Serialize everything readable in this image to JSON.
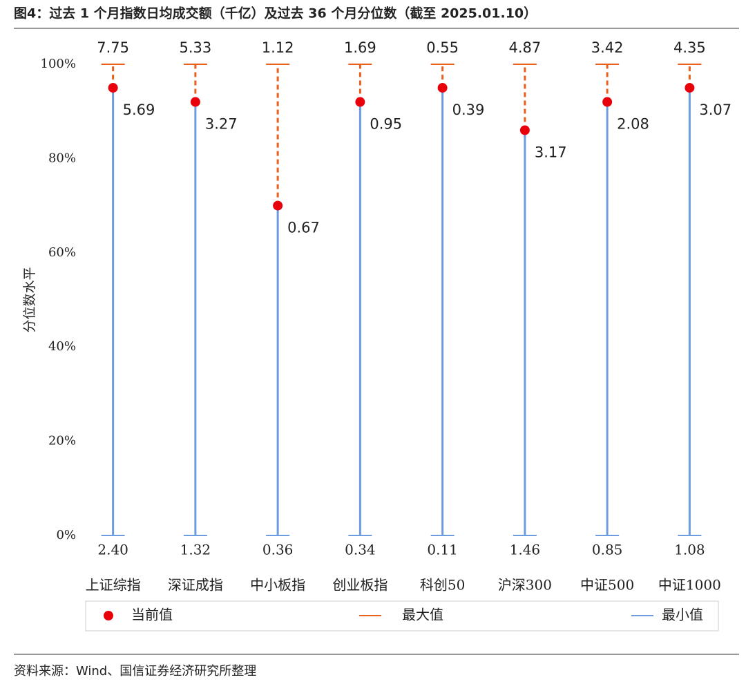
{
  "chart_data": {
    "type": "dumbbell",
    "title": "图4：过去 1 个月指数日均成交额（千亿）及过去 36 个月分位数（截至 2025.01.10）",
    "source": "资料来源：Wind、国信证券经济研究所整理",
    "ylabel": "分位数水平",
    "categories": [
      "上证综指",
      "深证成指",
      "中小板指",
      "创业板指",
      "科创50",
      "沪深300",
      "中证500",
      "中证1000"
    ],
    "ylim": [
      0,
      100
    ],
    "yticks": [
      {
        "value": 0,
        "label": "0%"
      },
      {
        "value": 20,
        "label": "20%"
      },
      {
        "value": 40,
        "label": "40%"
      },
      {
        "value": 60,
        "label": "60%"
      },
      {
        "value": 80,
        "label": "80%"
      },
      {
        "value": 100,
        "label": "100%"
      }
    ],
    "series": [
      {
        "name": "当前值",
        "color": "#e8000b",
        "values": [
          95,
          92,
          70,
          92,
          95,
          86,
          92,
          95
        ],
        "labels": [
          "5.69",
          "3.27",
          "0.67",
          "0.95",
          "0.39",
          "3.17",
          "2.08",
          "3.07"
        ]
      },
      {
        "name": "最大值",
        "color": "#e8601c",
        "values": [
          100,
          100,
          100,
          100,
          100,
          100,
          100,
          100
        ],
        "labels": [
          "7.75",
          "5.33",
          "1.12",
          "1.69",
          "0.55",
          "4.87",
          "3.42",
          "4.35"
        ]
      },
      {
        "name": "最小值",
        "color": "#6d9be0",
        "values": [
          0,
          0,
          0,
          0,
          0,
          0,
          0,
          0
        ],
        "labels": [
          "2.40",
          "1.32",
          "0.36",
          "0.34",
          "0.11",
          "1.46",
          "0.85",
          "1.08"
        ]
      }
    ],
    "legend": "bottom"
  }
}
